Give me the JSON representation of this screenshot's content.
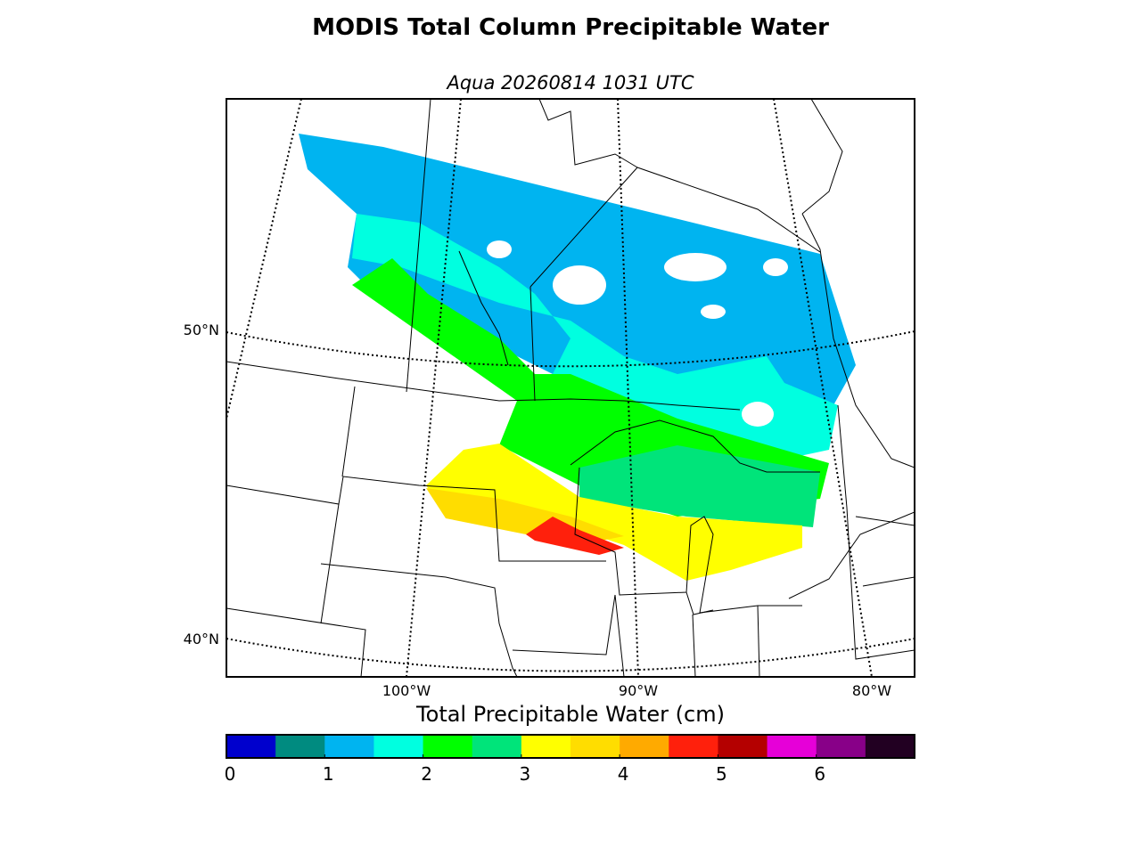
{
  "title": "MODIS Total Column Precipitable Water",
  "subtitle": "Aqua 20260814 1031 UTC",
  "map": {
    "lat_labels": [
      "50°N",
      "40°N"
    ],
    "lon_labels": [
      "100°W",
      "90°W",
      "80°W"
    ]
  },
  "colorbar": {
    "label": "Total Precipitable Water (cm)",
    "range": [
      0,
      7
    ],
    "ticks": [
      0,
      1,
      2,
      3,
      4,
      5,
      6
    ],
    "colors": [
      "#0000cd",
      "#008b80",
      "#00b4f0",
      "#00ffe0",
      "#00ff00",
      "#00e47a",
      "#ffff00",
      "#ffdd00",
      "#ffaa00",
      "#ff200c",
      "#b40000",
      "#e600d8",
      "#880088",
      "#220022"
    ]
  }
}
